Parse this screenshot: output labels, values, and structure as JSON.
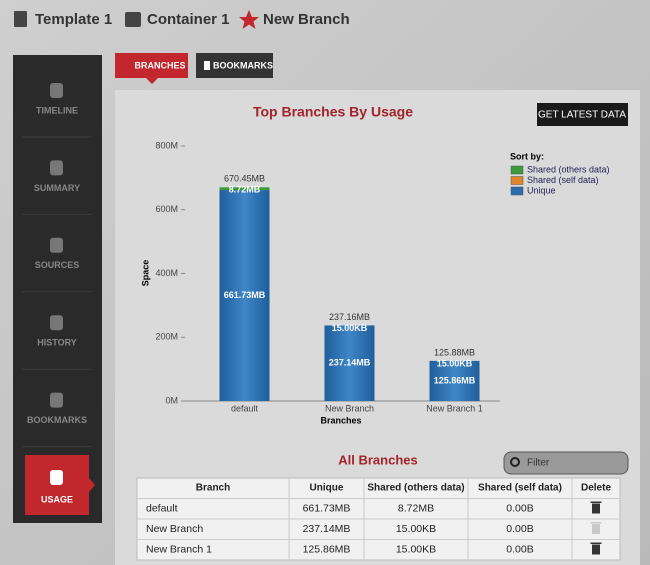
{
  "breadcrumb": [
    "Template 1",
    "Container 1",
    "New Branch"
  ],
  "tabs": [
    "BRANCHES",
    "BOOKMARKS"
  ],
  "sidebar": [
    "TIMELINE",
    "SUMMARY",
    "SOURCES",
    "HISTORY",
    "BOOKMARKS",
    "USAGE"
  ],
  "button": "GET LATEST DATA",
  "chart_data": {
    "type": "bar",
    "stacked": true,
    "title": "Top Branches By Usage",
    "x_label": "Branches",
    "y_label": "Space",
    "legend_title": "Sort by:",
    "legend": "upper right",
    "categories": [
      "default",
      "New Branch",
      "New Branch 1"
    ],
    "series": [
      {
        "name": "Unique",
        "color": "#2a6cb0",
        "values": [
          661.73,
          237.14,
          125.86
        ],
        "value_labels": [
          "661.73MB",
          "237.14MB",
          "125.86MB"
        ]
      },
      {
        "name": "Shared (self data)",
        "color": "#e0852a",
        "values": [
          0,
          0,
          0
        ]
      },
      {
        "name": "Shared (others data)",
        "color": "#3c9a3c",
        "values": [
          8.72,
          0.015,
          0.015
        ],
        "value_labels": [
          "8.72MB",
          "15.00KB",
          "15.00KB"
        ]
      }
    ],
    "total_labels": [
      "670.45MB",
      "237.16MB",
      "125.88MB"
    ],
    "ylim": [
      0,
      800
    ],
    "yticks": [
      {
        "value": 0,
        "label": "0M"
      },
      {
        "value": 200,
        "label": "200M"
      },
      {
        "value": 400,
        "label": "400M"
      },
      {
        "value": 600,
        "label": "600M"
      },
      {
        "value": 800,
        "label": "800M"
      }
    ]
  },
  "table": {
    "title": "All Branches",
    "filter_placeholder": "Filter",
    "columns": [
      "Branch",
      "Unique",
      "Shared (others data)",
      "Shared (self data)",
      "Delete"
    ],
    "rows": [
      [
        "default",
        "661.73MB",
        "8.72MB",
        "0.00B"
      ],
      [
        "New Branch",
        "237.14MB",
        "15.00KB",
        "0.00B"
      ],
      [
        "New Branch 1",
        "125.86MB",
        "15.00KB",
        "0.00B"
      ]
    ]
  }
}
